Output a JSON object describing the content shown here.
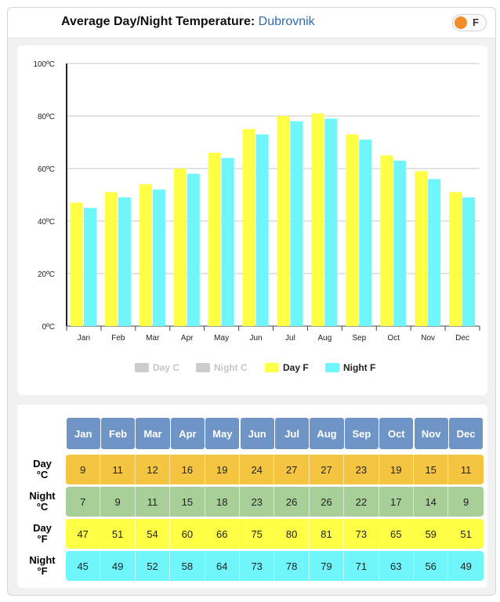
{
  "header": {
    "title": "Average Day/Night Temperature:",
    "city": "Dubrovnik",
    "toggle_label": "F"
  },
  "chart_data": {
    "type": "bar",
    "categories": [
      "Jan",
      "Feb",
      "Mar",
      "Apr",
      "May",
      "Jun",
      "Jul",
      "Aug",
      "Sep",
      "Oct",
      "Nov",
      "Dec"
    ],
    "series": [
      {
        "name": "Day F",
        "values": [
          47,
          51,
          54,
          60,
          66,
          75,
          80,
          81,
          73,
          65,
          59,
          51
        ],
        "color": "#ffff46"
      },
      {
        "name": "Night F",
        "values": [
          45,
          49,
          52,
          58,
          64,
          73,
          78,
          79,
          71,
          63,
          56,
          49
        ],
        "color": "#6ef6fa"
      }
    ],
    "ylim": [
      0,
      100
    ],
    "ytick_labels": [
      "0ºC",
      "20ºC",
      "40ºC",
      "60ºC",
      "80ºC",
      "100ºC"
    ],
    "grid": true,
    "legend": [
      {
        "label": "Day C",
        "color": "#cccccc",
        "active": false
      },
      {
        "label": "Night C",
        "color": "#cccccc",
        "active": false
      },
      {
        "label": "Day F",
        "color": "#ffff46",
        "active": true
      },
      {
        "label": "Night F",
        "color": "#6ef6fa",
        "active": true
      }
    ],
    "legend_position": "bottom"
  },
  "table": {
    "months": [
      "Jan",
      "Feb",
      "Mar",
      "Apr",
      "May",
      "Jun",
      "Jul",
      "Aug",
      "Sep",
      "Oct",
      "Nov",
      "Dec"
    ],
    "rows": [
      {
        "label1": "Day",
        "label2": "°C",
        "values": [
          "9",
          "11",
          "12",
          "16",
          "19",
          "24",
          "27",
          "27",
          "23",
          "19",
          "15",
          "11"
        ],
        "color": "#f5c542"
      },
      {
        "label1": "Night",
        "label2": "°C",
        "values": [
          "7",
          "9",
          "11",
          "15",
          "18",
          "23",
          "26",
          "26",
          "22",
          "17",
          "14",
          "9"
        ],
        "color": "#a9cf99"
      },
      {
        "label1": "Day",
        "label2": "°F",
        "values": [
          "47",
          "51",
          "54",
          "60",
          "66",
          "75",
          "80",
          "81",
          "73",
          "65",
          "59",
          "51"
        ],
        "color": "#ffff46"
      },
      {
        "label1": "Night",
        "label2": "°F",
        "values": [
          "45",
          "49",
          "52",
          "58",
          "64",
          "73",
          "78",
          "79",
          "71",
          "63",
          "56",
          "49"
        ],
        "color": "#6ef6fa"
      }
    ]
  }
}
